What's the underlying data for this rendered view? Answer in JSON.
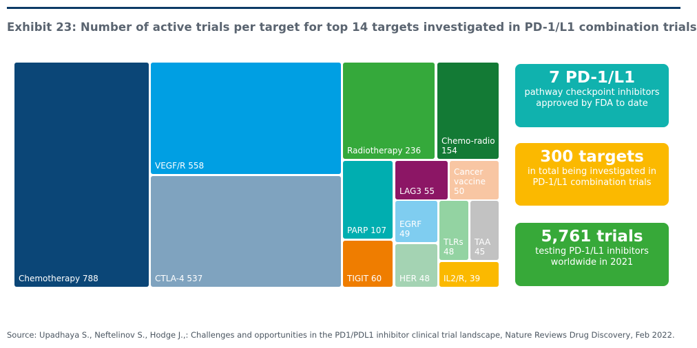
{
  "header": {
    "title": "Exhibit 23: Number of active trials per target for top 14 targets investigated in PD-1/L1 combination trials"
  },
  "chart_data": {
    "type": "treemap",
    "title": "Exhibit 23: Number of active trials per target for top 14 targets investigated in PD-1/L1 combination trials",
    "categories": [
      "Chemotherapy",
      "VEGF/R",
      "CTLA-4",
      "Radiotherapy",
      "Chemo-radio",
      "PARP",
      "LAG3",
      "Cancer vaccine",
      "EGRF",
      "TLRs",
      "TAA",
      "TIGIT",
      "HER",
      "IL2/R"
    ],
    "values": [
      788,
      558,
      537,
      236,
      154,
      107,
      55,
      50,
      49,
      48,
      45,
      60,
      48,
      39
    ],
    "labels": [
      "Chemotherapy 788",
      "VEGF/R 558",
      "CTLA-4 537",
      "Radiotherapy 236",
      "Chemo-radio 154",
      "PARP 107",
      "LAG3 55",
      "Cancer vaccine 50",
      "EGRF 49",
      "TLRs 48",
      "TAA 45",
      "TIGIT 60",
      "HER 48",
      "IL2/R, 39"
    ],
    "colors": [
      "#0b4677",
      "#009fe3",
      "#7fa3bf",
      "#35a93b",
      "#137a35",
      "#00aeb0",
      "#8c1665",
      "#f8c6a3",
      "#7fcdf0",
      "#93d3a2",
      "#c2c2c2",
      "#ef7d00",
      "#a4d3b3",
      "#fbb900"
    ],
    "label_colors": [
      "#ffffff",
      "#ffffff",
      "#ffffff",
      "#ffffff",
      "#ffffff",
      "#ffffff",
      "#ffffff",
      "#ffffff",
      "#ffffff",
      "#ffffff",
      "#ffffff",
      "#ffffff",
      "#ffffff",
      "#ffffff"
    ]
  },
  "stats": [
    {
      "headline": "7 PD-1/L1",
      "text": "pathway checkpoint inhibitors approved by FDA to date",
      "color": "#10b2ae"
    },
    {
      "headline": "300 targets",
      "text": "in total being investigated in PD-1/L1 combination trials",
      "color": "#fbb900"
    },
    {
      "headline": "5,761 trials",
      "text": "testing PD-1/L1 inhibitors worldwide in 2021",
      "color": "#37a939"
    }
  ],
  "footer": {
    "source": "Source: Upadhaya S., Neftelinov S., Hodge J.,: Challenges and opportunities in the PD1/PDL1 inhibitor clinical trial landscape, Nature Reviews Drug Discovery, Feb 2022."
  }
}
